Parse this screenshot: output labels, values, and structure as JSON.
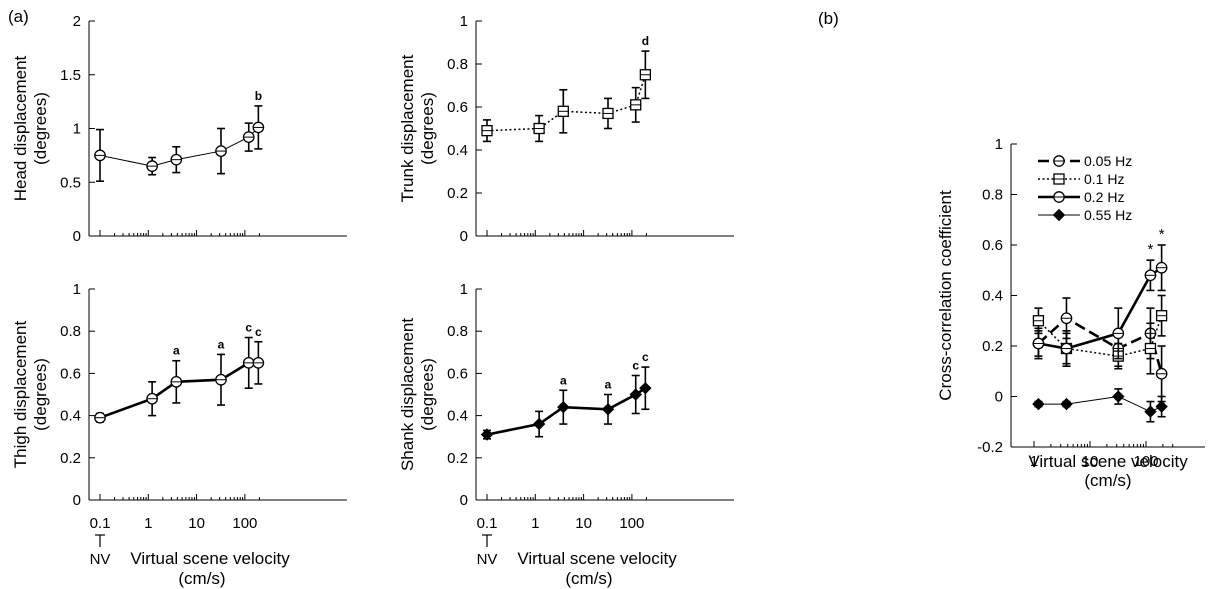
{
  "figure": {
    "panel_a_label": "(a)",
    "panel_b_label": "(b)"
  },
  "chart_data": [
    {
      "id": "head",
      "type": "line",
      "ylabel": "Head displacement",
      "ylabel_unit": "(degrees)",
      "xlabel": "",
      "xscale": "log",
      "xlim": [
        0.1,
        200
      ],
      "ylim": [
        0,
        2
      ],
      "yticks": [
        0,
        0.5,
        1,
        1.5,
        2
      ],
      "ytick_labels": [
        "0",
        "0.5",
        "1",
        "1.5",
        "2"
      ],
      "series": [
        {
          "style": "thin",
          "marker": "circle",
          "x": [
            0.1,
            1.2,
            3.8,
            32,
            120,
            190
          ],
          "y": [
            0.75,
            0.65,
            0.71,
            0.79,
            0.92,
            1.01
          ],
          "err": [
            0.24,
            0.08,
            0.12,
            0.21,
            0.13,
            0.2
          ],
          "annotations": [
            "",
            "",
            "",
            "",
            "",
            "b"
          ]
        }
      ]
    },
    {
      "id": "trunk",
      "type": "line",
      "ylabel": "Trunk displacement",
      "ylabel_unit": "(degrees)",
      "xlabel": "",
      "xscale": "log",
      "xlim": [
        0.1,
        200
      ],
      "ylim": [
        0,
        1
      ],
      "yticks": [
        0,
        0.2,
        0.4,
        0.6,
        0.8,
        1
      ],
      "ytick_labels": [
        "0",
        "0.2",
        "0.4",
        "0.6",
        "0.8",
        "1"
      ],
      "series": [
        {
          "style": "dotted",
          "marker": "square",
          "x": [
            0.1,
            1.2,
            3.8,
            32,
            120,
            190
          ],
          "y": [
            0.49,
            0.5,
            0.58,
            0.57,
            0.61,
            0.75
          ],
          "err": [
            0.05,
            0.06,
            0.1,
            0.07,
            0.08,
            0.11
          ],
          "annotations": [
            "",
            "",
            "",
            "",
            "",
            "d"
          ]
        }
      ]
    },
    {
      "id": "thigh",
      "type": "line",
      "ylabel": "Thigh displacement",
      "ylabel_unit": "(degrees)",
      "xlabel": "Virtual scene velocity",
      "xlabel_unit": "(cm/s)",
      "nv_label": "NV",
      "xscale": "log",
      "xlim": [
        0.1,
        200
      ],
      "xticks": [
        0.1,
        1,
        10,
        100
      ],
      "xtick_labels": [
        "0.1",
        "1",
        "10",
        "100"
      ],
      "ylim": [
        0,
        1
      ],
      "yticks": [
        0,
        0.2,
        0.4,
        0.6,
        0.8,
        1
      ],
      "ytick_labels": [
        "0",
        "0.2",
        "0.4",
        "0.6",
        "0.8",
        "1"
      ],
      "series": [
        {
          "style": "thick",
          "marker": "circle",
          "x": [
            0.1,
            1.2,
            3.8,
            32,
            120,
            190
          ],
          "y": [
            0.39,
            0.48,
            0.56,
            0.57,
            0.65,
            0.65
          ],
          "err": [
            0.02,
            0.08,
            0.1,
            0.12,
            0.12,
            0.1
          ],
          "annotations": [
            "",
            "",
            "a",
            "a",
            "c",
            "c"
          ]
        }
      ]
    },
    {
      "id": "shank",
      "type": "line",
      "ylabel": "Shank displacement",
      "ylabel_unit": "(degrees)",
      "xlabel": "Virtual scene velocity",
      "xlabel_unit": "(cm/s)",
      "nv_label": "NV",
      "xscale": "log",
      "xlim": [
        0.1,
        200
      ],
      "xticks": [
        0.1,
        1,
        10,
        100
      ],
      "xtick_labels": [
        "0.1",
        "1",
        "10",
        "100"
      ],
      "ylim": [
        0,
        1
      ],
      "yticks": [
        0,
        0.2,
        0.4,
        0.6,
        0.8,
        1
      ],
      "ytick_labels": [
        "0",
        "0.2",
        "0.4",
        "0.6",
        "0.8",
        "1"
      ],
      "series": [
        {
          "style": "thick",
          "marker": "diamond",
          "x": [
            0.1,
            1.2,
            3.8,
            32,
            120,
            190
          ],
          "y": [
            0.31,
            0.36,
            0.44,
            0.43,
            0.5,
            0.53
          ],
          "err": [
            0.02,
            0.06,
            0.08,
            0.07,
            0.09,
            0.1
          ],
          "annotations": [
            "",
            "",
            "a",
            "a",
            "c",
            "c"
          ]
        }
      ]
    },
    {
      "id": "xcorr",
      "type": "line",
      "ylabel": "Cross-correlation coefficient",
      "xlabel": "Virtual scene velocity",
      "xlabel_unit": "(cm/s)",
      "xscale": "log",
      "xlim": [
        1,
        300
      ],
      "xticks": [
        1,
        10,
        100
      ],
      "xtick_labels": [
        "1",
        "10",
        "100"
      ],
      "ylim": [
        -0.2,
        1
      ],
      "yticks": [
        -0.2,
        0,
        0.2,
        0.4,
        0.6,
        0.8,
        1
      ],
      "ytick_labels": [
        "-0.2",
        "0",
        "0.2",
        "0.4",
        "0.6",
        "0.8",
        "1"
      ],
      "legend_position": "top-left",
      "series": [
        {
          "name": "0.05 Hz",
          "style": "dashed",
          "marker": "circle",
          "x": [
            1.2,
            3.8,
            32,
            120,
            190
          ],
          "y": [
            0.21,
            0.31,
            0.19,
            0.25,
            0.09
          ],
          "err": [
            0.06,
            0.08,
            0.07,
            0.1,
            0.11
          ]
        },
        {
          "name": "0.1 Hz",
          "style": "dotted",
          "marker": "square",
          "x": [
            1.2,
            3.8,
            32,
            120,
            190
          ],
          "y": [
            0.3,
            0.19,
            0.16,
            0.19,
            0.32
          ],
          "err": [
            0.05,
            0.07,
            0.05,
            0.1,
            0.08
          ]
        },
        {
          "name": "0.2 Hz",
          "style": "thick",
          "marker": "circle",
          "x": [
            1.2,
            3.8,
            32,
            120,
            190
          ],
          "y": [
            0.21,
            0.19,
            0.25,
            0.48,
            0.51
          ],
          "err": [
            0.05,
            0.06,
            0.1,
            0.06,
            0.09
          ],
          "annotations": [
            "",
            "",
            "",
            "*",
            "*"
          ]
        },
        {
          "name": "0.55 Hz",
          "style": "thin",
          "marker": "diamond",
          "x": [
            1.2,
            3.8,
            32,
            120,
            190
          ],
          "y": [
            -0.03,
            -0.03,
            0.0,
            -0.06,
            -0.04
          ],
          "err": [
            0.01,
            0.01,
            0.03,
            0.04,
            0.04
          ]
        }
      ]
    }
  ]
}
